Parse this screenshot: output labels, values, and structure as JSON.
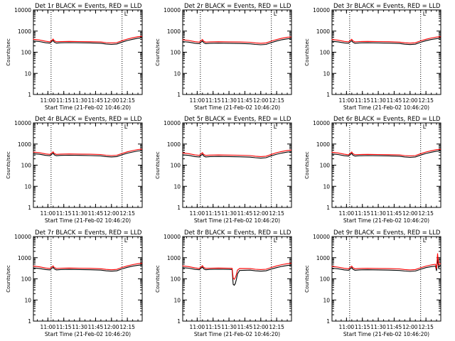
{
  "time_axis": {
    "ticks": [
      "11:00",
      "11:15",
      "11:30",
      "11:45",
      "12:00",
      "12:15"
    ],
    "range_hours": [
      10.7722,
      12.4833
    ],
    "xlabel": "Start Time (21-Feb-02 10:46:20)"
  },
  "y_axis": {
    "label": "Counts/sec",
    "scale": "log",
    "range": [
      1,
      10000
    ],
    "ticks": [
      "1",
      "10",
      "100",
      "1000",
      "10000"
    ]
  },
  "markers": {
    "dotted_lines_at": [
      "11:03",
      "12:10"
    ],
    "flag_label": "L"
  },
  "colors": {
    "events": "#000000",
    "lld": "#ff0000",
    "axes": "#000000"
  },
  "chart_data": [
    {
      "type": "line",
      "title": "Det 1r BLACK = Events, RED = LLD",
      "x": [
        "10:46",
        "10:52",
        "10:58",
        "11:02",
        "11:04",
        "11:05",
        "11:06",
        "11:08",
        "11:12",
        "11:20",
        "11:30",
        "11:40",
        "11:50",
        "11:55",
        "12:00",
        "12:05",
        "12:10",
        "12:15",
        "12:20",
        "12:25",
        "12:29"
      ],
      "series": [
        {
          "name": "Events",
          "values": [
            340,
            320,
            280,
            270,
            330,
            360,
            300,
            270,
            280,
            285,
            280,
            275,
            265,
            245,
            235,
            245,
            300,
            360,
            410,
            460,
            480
          ]
        },
        {
          "name": "LLD",
          "values": [
            410,
            380,
            330,
            310,
            380,
            420,
            350,
            315,
            320,
            325,
            320,
            315,
            305,
            285,
            275,
            285,
            350,
            420,
            480,
            540,
            560
          ]
        }
      ]
    },
    {
      "type": "line",
      "title": "Det 2r BLACK = Events, RED = LLD",
      "x": [
        "10:46",
        "10:52",
        "10:58",
        "11:02",
        "11:04",
        "11:05",
        "11:06",
        "11:08",
        "11:12",
        "11:20",
        "11:30",
        "11:40",
        "11:50",
        "11:55",
        "12:00",
        "12:05",
        "12:10",
        "12:15",
        "12:20",
        "12:25",
        "12:29"
      ],
      "series": [
        {
          "name": "Events",
          "values": [
            320,
            300,
            265,
            255,
            310,
            340,
            285,
            255,
            265,
            270,
            265,
            260,
            250,
            235,
            225,
            235,
            285,
            340,
            390,
            430,
            450
          ]
        },
        {
          "name": "LLD",
          "values": [
            390,
            360,
            315,
            300,
            365,
            400,
            335,
            300,
            310,
            315,
            310,
            305,
            295,
            275,
            265,
            275,
            335,
            400,
            460,
            510,
            530
          ]
        }
      ]
    },
    {
      "type": "line",
      "title": "Det 3r BLACK = Events, RED = LLD",
      "x": [
        "10:46",
        "10:52",
        "10:58",
        "11:02",
        "11:04",
        "11:05",
        "11:06",
        "11:08",
        "11:12",
        "11:20",
        "11:30",
        "11:40",
        "11:50",
        "11:55",
        "12:00",
        "12:05",
        "12:10",
        "12:15",
        "12:20",
        "12:25",
        "12:29"
      ],
      "series": [
        {
          "name": "Events",
          "values": [
            330,
            310,
            275,
            265,
            320,
            350,
            295,
            265,
            275,
            280,
            275,
            270,
            260,
            240,
            230,
            240,
            295,
            350,
            400,
            440,
            460
          ]
        },
        {
          "name": "LLD",
          "values": [
            400,
            370,
            325,
            310,
            375,
            410,
            345,
            310,
            320,
            325,
            320,
            315,
            300,
            280,
            270,
            280,
            345,
            410,
            470,
            520,
            545
          ]
        }
      ]
    },
    {
      "type": "line",
      "title": "Det 4r BLACK = Events, RED = LLD",
      "x": [
        "10:46",
        "10:52",
        "10:58",
        "11:02",
        "11:04",
        "11:05",
        "11:06",
        "11:08",
        "11:12",
        "11:20",
        "11:30",
        "11:40",
        "11:50",
        "11:55",
        "12:00",
        "12:05",
        "12:10",
        "12:15",
        "12:20",
        "12:25",
        "12:29"
      ],
      "series": [
        {
          "name": "Events",
          "values": [
            350,
            330,
            290,
            280,
            340,
            370,
            310,
            280,
            290,
            295,
            290,
            285,
            275,
            255,
            245,
            255,
            310,
            370,
            420,
            470,
            490
          ]
        },
        {
          "name": "LLD",
          "values": [
            420,
            390,
            340,
            325,
            395,
            430,
            360,
            325,
            335,
            340,
            335,
            330,
            320,
            295,
            285,
            295,
            360,
            430,
            490,
            550,
            575
          ]
        }
      ]
    },
    {
      "type": "line",
      "title": "Det 5r BLACK = Events, RED = LLD",
      "x": [
        "10:46",
        "10:52",
        "10:58",
        "11:02",
        "11:04",
        "11:05",
        "11:06",
        "11:08",
        "11:12",
        "11:20",
        "11:30",
        "11:40",
        "11:50",
        "11:55",
        "12:00",
        "12:05",
        "12:10",
        "12:15",
        "12:20",
        "12:25",
        "12:29"
      ],
      "series": [
        {
          "name": "Events",
          "values": [
            310,
            290,
            255,
            245,
            300,
            330,
            275,
            245,
            255,
            260,
            255,
            250,
            240,
            225,
            215,
            225,
            275,
            330,
            375,
            415,
            435
          ]
        },
        {
          "name": "LLD",
          "values": [
            380,
            350,
            305,
            290,
            355,
            390,
            325,
            290,
            300,
            305,
            300,
            295,
            285,
            265,
            255,
            265,
            325,
            390,
            445,
            495,
            515
          ]
        }
      ]
    },
    {
      "type": "line",
      "title": "Det 6r BLACK = Events, RED = LLD",
      "x": [
        "10:46",
        "10:52",
        "10:58",
        "11:02",
        "11:04",
        "11:05",
        "11:06",
        "11:08",
        "11:12",
        "11:20",
        "11:30",
        "11:40",
        "11:50",
        "11:55",
        "12:00",
        "12:05",
        "12:10",
        "12:15",
        "12:20",
        "12:25",
        "12:29"
      ],
      "series": [
        {
          "name": "Events",
          "values": [
            340,
            320,
            280,
            270,
            330,
            360,
            300,
            270,
            280,
            285,
            280,
            275,
            265,
            245,
            235,
            245,
            300,
            360,
            410,
            460,
            480
          ]
        },
        {
          "name": "LLD",
          "values": [
            410,
            380,
            330,
            310,
            380,
            420,
            350,
            315,
            320,
            325,
            320,
            315,
            305,
            285,
            275,
            285,
            350,
            420,
            480,
            540,
            560
          ]
        }
      ]
    },
    {
      "type": "line",
      "title": "Det 7r BLACK = Events, RED = LLD",
      "x": [
        "10:46",
        "10:52",
        "10:58",
        "11:02",
        "11:04",
        "11:05",
        "11:06",
        "11:08",
        "11:12",
        "11:20",
        "11:30",
        "11:40",
        "11:50",
        "11:55",
        "12:00",
        "12:05",
        "12:10",
        "12:15",
        "12:20",
        "12:25",
        "12:29"
      ],
      "series": [
        {
          "name": "Events",
          "values": [
            330,
            310,
            275,
            265,
            320,
            350,
            295,
            265,
            275,
            280,
            275,
            270,
            260,
            240,
            230,
            240,
            295,
            350,
            400,
            440,
            460
          ]
        },
        {
          "name": "LLD",
          "values": [
            400,
            370,
            325,
            310,
            375,
            410,
            345,
            310,
            320,
            325,
            320,
            315,
            300,
            280,
            270,
            280,
            345,
            410,
            470,
            520,
            545
          ]
        }
      ]
    },
    {
      "type": "line",
      "title": "Det 8r BLACK = Events, RED = LLD",
      "x": [
        "10:46",
        "10:52",
        "10:58",
        "11:02",
        "11:04",
        "11:05",
        "11:06",
        "11:08",
        "11:12",
        "11:20",
        "11:30",
        "11:33",
        "11:34",
        "11:35",
        "11:36",
        "11:37",
        "11:38",
        "11:40",
        "11:50",
        "11:55",
        "12:00",
        "12:05",
        "12:10",
        "12:15",
        "12:20",
        "12:25",
        "12:29"
      ],
      "series": [
        {
          "name": "Events",
          "values": [
            340,
            320,
            280,
            270,
            330,
            360,
            300,
            270,
            280,
            285,
            280,
            275,
            55,
            50,
            60,
            95,
            170,
            250,
            260,
            240,
            230,
            240,
            290,
            340,
            390,
            430,
            450
          ]
        },
        {
          "name": "LLD",
          "values": [
            410,
            380,
            330,
            310,
            380,
            420,
            350,
            315,
            320,
            325,
            320,
            315,
            110,
            95,
            115,
            160,
            260,
            310,
            305,
            285,
            275,
            285,
            345,
            410,
            470,
            520,
            545
          ]
        }
      ]
    },
    {
      "type": "line",
      "title": "Det 9r BLACK = Events, RED = LLD",
      "x": [
        "10:46",
        "10:52",
        "10:58",
        "11:02",
        "11:04",
        "11:05",
        "11:06",
        "11:08",
        "11:12",
        "11:20",
        "11:30",
        "11:40",
        "11:50",
        "11:55",
        "12:00",
        "12:05",
        "12:10",
        "12:15",
        "12:20",
        "12:24",
        "12:25",
        "12:26",
        "12:27",
        "12:28",
        "12:29"
      ],
      "series": [
        {
          "name": "Events",
          "values": [
            320,
            300,
            265,
            255,
            310,
            340,
            285,
            255,
            265,
            270,
            265,
            260,
            250,
            235,
            225,
            235,
            285,
            340,
            380,
            400,
            240,
            900,
            330,
            420,
            430
          ]
        },
        {
          "name": "LLD",
          "values": [
            390,
            360,
            315,
            300,
            365,
            400,
            335,
            300,
            310,
            315,
            310,
            305,
            295,
            275,
            265,
            275,
            335,
            400,
            455,
            490,
            300,
            1600,
            450,
            510,
            520
          ]
        }
      ]
    }
  ]
}
